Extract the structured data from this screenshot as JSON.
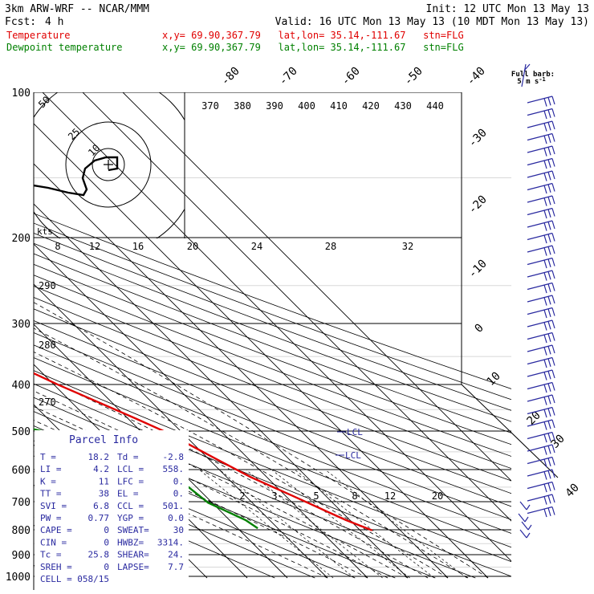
{
  "header": {
    "model": "3km ARW-WRF -- NCAR/MMM",
    "init": "Init: 12 UTC Mon 13 May 13",
    "fcst_label": "Fcst:",
    "fcst_value": "4 h",
    "valid": "Valid: 16 UTC Mon 13 May 13 (10 MDT Mon 13 May 13)",
    "temp_label": "Temperature",
    "temp_loc": "x,y= 69.90,367.79   lat,lon= 35.14,-111.67   stn=FLG",
    "dew_label": "Dewpoint temperature",
    "dew_loc": "x,y= 69.90,367.79   lat,lon= 35.14,-111.67   stn=FLG"
  },
  "colors": {
    "temperature": "#e00000",
    "dewpoint": "#008000",
    "barbs": "#2a2aa0",
    "grid": "#000000"
  },
  "barb_legend": {
    "line1": "Full barb:",
    "line2": "5 m s",
    "sup": "-1"
  },
  "hodograph": {
    "units": "kts",
    "ring_labels": [
      "10",
      "25",
      "50"
    ]
  },
  "parcel_info": {
    "title": "Parcel Info",
    "rows": [
      {
        "a": "T  =",
        "av": "18.2",
        "b": "Td =",
        "bv": "-2.8"
      },
      {
        "a": "LI =",
        "av": "4.2",
        "b": "LCL =",
        "bv": "558."
      },
      {
        "a": "K  =",
        "av": "11",
        "b": "LFC =",
        "bv": "0."
      },
      {
        "a": "TT =",
        "av": "38",
        "b": "EL =",
        "bv": "0."
      },
      {
        "a": "SVI =",
        "av": "6.8",
        "b": "CCL =",
        "bv": "501."
      },
      {
        "a": "PW =",
        "av": "0.77",
        "b": "YGP =",
        "bv": "0.0"
      },
      {
        "a": "CAPE =",
        "av": "0",
        "b": "SWEAT=",
        "bv": "30"
      },
      {
        "a": "CIN =",
        "av": "0",
        "b": "HWBZ=",
        "bv": "3314."
      },
      {
        "a": "Tc =",
        "av": "25.8",
        "b": "SHEAR=",
        "bv": "24."
      },
      {
        "a": "SREH =",
        "av": "0",
        "b": "LAPSE=",
        "bv": "7.7"
      },
      {
        "a": "CELL =",
        "av": "058/15",
        "b": "",
        "bv": ""
      }
    ]
  },
  "chart_data": {
    "type": "line",
    "pressure_labels": [
      "100",
      "200",
      "300",
      "400",
      "500",
      "600",
      "700",
      "800",
      "900",
      "1000"
    ],
    "top_temp_labels": [
      "-80",
      "-70",
      "-60",
      "-50",
      "-40"
    ],
    "right_temp_labels": [
      "-30",
      "-20",
      "-10",
      "0",
      "10",
      "20",
      "30",
      "40"
    ],
    "theta_labels": [
      "370",
      "380",
      "390",
      "400",
      "410",
      "420",
      "430",
      "440"
    ],
    "theta_left_labels": [
      "290",
      "280",
      "270"
    ],
    "hodo_speed_labels": [
      "8",
      "12",
      "16",
      "20",
      "24",
      "28",
      "32"
    ],
    "mixing_labels": [
      "2",
      "3",
      "5",
      "8",
      "12",
      "20"
    ],
    "annotations": [
      "LCL",
      "LCL"
    ],
    "series": [
      {
        "name": "Temperature",
        "points": [
          [
            -25,
            100
          ],
          [
            -35,
            140
          ],
          [
            -53,
            170
          ],
          [
            -61,
            190
          ],
          [
            -63,
            200
          ],
          [
            -61,
            220
          ],
          [
            -57,
            250
          ],
          [
            -48,
            300
          ],
          [
            -37,
            350
          ],
          [
            -29,
            400
          ],
          [
            -18,
            470
          ],
          [
            -14,
            500
          ],
          [
            -8,
            570
          ],
          [
            -4,
            620
          ],
          [
            2,
            680
          ],
          [
            6,
            725
          ],
          [
            9,
            760
          ],
          [
            13,
            798
          ]
        ]
      },
      {
        "name": "Dewpoint temperature",
        "points": [
          [
            -62,
            100
          ],
          [
            -67,
            120
          ],
          [
            -74,
            150
          ],
          [
            -77,
            180
          ],
          [
            -80,
            200
          ],
          [
            -80,
            230
          ],
          [
            -76,
            260
          ],
          [
            -70,
            300
          ],
          [
            -70,
            345
          ],
          [
            -72,
            380
          ],
          [
            -70,
            410
          ],
          [
            -55,
            470
          ],
          [
            -44,
            500
          ],
          [
            -32,
            560
          ],
          [
            -30,
            600
          ],
          [
            -22,
            650
          ],
          [
            -21,
            700
          ],
          [
            -16,
            760
          ],
          [
            -15,
            790
          ]
        ]
      }
    ]
  }
}
